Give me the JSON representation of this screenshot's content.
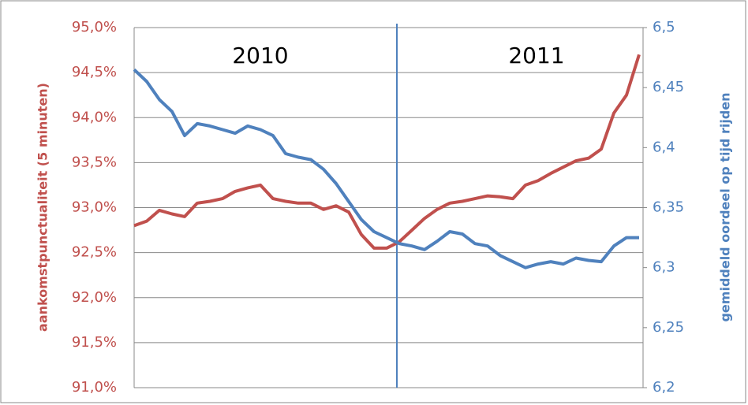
{
  "chart_data": {
    "type": "line",
    "annotations": [
      "2010",
      "2011"
    ],
    "y_label": "aankomstpunctualiteit  (5 minuten)",
    "y2_label": "gemiddeld oordeel op tijd rijden",
    "categories": [
      null,
      null,
      null,
      null,
      null,
      null,
      null,
      null,
      null,
      null,
      null,
      null,
      null,
      null,
      null,
      null,
      null,
      null,
      null,
      null,
      null,
      null,
      null,
      null,
      null,
      null,
      null,
      null,
      null,
      null,
      null,
      null,
      null,
      null,
      null,
      null,
      null,
      null,
      null,
      null,
      null
    ],
    "series": [
      {
        "name": "aankomstpunctualiteit",
        "color": "#c0504d",
        "axis": "y",
        "values": [
          92.8,
          92.85,
          92.97,
          92.93,
          92.9,
          93.05,
          93.07,
          93.1,
          93.18,
          93.22,
          93.25,
          93.1,
          93.07,
          93.05,
          93.05,
          92.98,
          93.02,
          92.95,
          92.7,
          92.55,
          92.55,
          92.62,
          92.75,
          92.88,
          92.98,
          93.05,
          93.07,
          93.1,
          93.13,
          93.12,
          93.1,
          93.25,
          93.3,
          93.38,
          93.45,
          93.52,
          93.55,
          93.65,
          94.05,
          94.25,
          94.7
        ]
      },
      {
        "name": "gemiddeld oordeel",
        "color": "#4f81bd",
        "axis": "y2",
        "values": [
          6.465,
          6.455,
          6.44,
          6.43,
          6.41,
          6.42,
          6.418,
          6.415,
          6.412,
          6.418,
          6.415,
          6.41,
          6.395,
          6.392,
          6.39,
          6.382,
          6.37,
          6.355,
          6.34,
          6.33,
          6.325,
          6.32,
          6.318,
          6.315,
          6.322,
          6.33,
          6.328,
          6.32,
          6.318,
          6.31,
          6.305,
          6.3,
          6.303,
          6.305,
          6.303,
          6.308,
          6.306,
          6.305,
          6.318,
          6.325,
          6.325
        ]
      }
    ],
    "ylim": [
      91,
      95
    ],
    "yticks": [
      {
        "value": 91,
        "label": "91,0%"
      },
      {
        "value": 91.5,
        "label": "91,5%"
      },
      {
        "value": 92,
        "label": "92,0%"
      },
      {
        "value": 92.5,
        "label": "92,5%"
      },
      {
        "value": 93,
        "label": "93,0%"
      },
      {
        "value": 93.5,
        "label": "93,5%"
      },
      {
        "value": 94,
        "label": "94,0%"
      },
      {
        "value": 94.5,
        "label": "94,5%"
      },
      {
        "value": 95,
        "label": "95,0%"
      }
    ],
    "y2lim": [
      6.2,
      6.5
    ],
    "y2ticks": [
      {
        "value": 6.2,
        "label": "6,2"
      },
      {
        "value": 6.25,
        "label": "6,25"
      },
      {
        "value": 6.3,
        "label": "6,3"
      },
      {
        "value": 6.35,
        "label": "6,35"
      },
      {
        "value": 6.4,
        "label": "6,4"
      },
      {
        "value": 6.45,
        "label": "6,45"
      },
      {
        "value": 6.5,
        "label": "6,5"
      }
    ],
    "grid": true
  }
}
